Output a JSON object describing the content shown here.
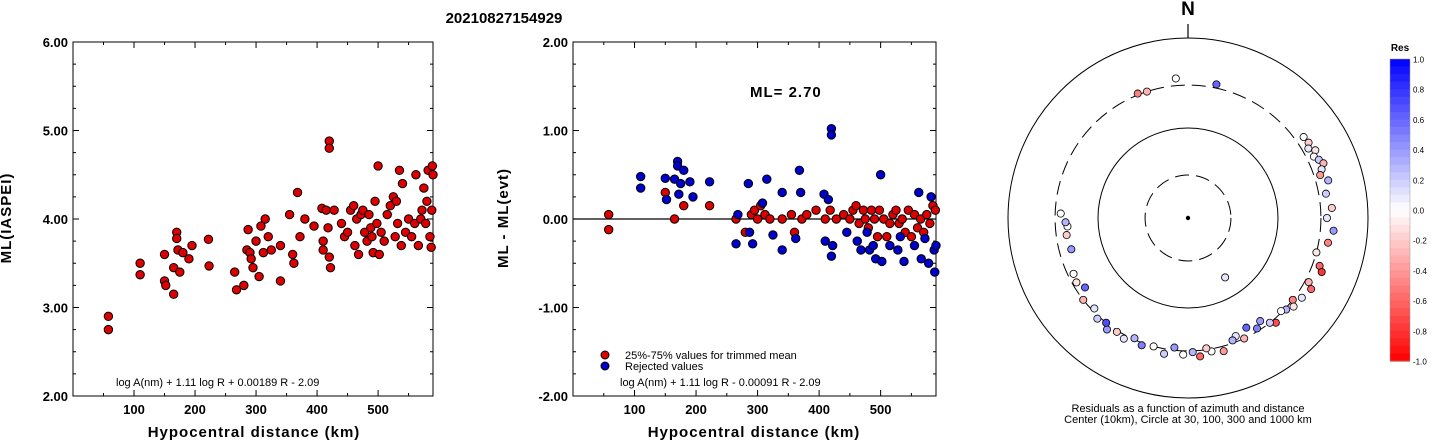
{
  "page_title": "20210827154929",
  "chart_data": [
    {
      "type": "scatter",
      "xlabel": "Hypocentral distance (km)",
      "ylabel": "ML(IASPEI)",
      "xlim": [
        0,
        590
      ],
      "ylim": [
        2.0,
        6.0
      ],
      "xticks": [
        "100",
        "200",
        "300",
        "400",
        "500"
      ],
      "xtick_values": [
        100,
        200,
        300,
        400,
        500
      ],
      "yticks": [
        "2.00",
        "3.00",
        "4.00",
        "5.00",
        "6.00"
      ],
      "ytick_values": [
        2.0,
        3.0,
        4.0,
        5.0,
        6.0
      ],
      "formula": "log A(nm) + 1.11 log R + 0.00189 R - 2.09",
      "marker_color": "#dd0000",
      "points": [
        [
          58,
          2.9
        ],
        [
          58,
          2.75
        ],
        [
          110,
          3.5
        ],
        [
          110,
          3.37
        ],
        [
          150,
          3.6
        ],
        [
          150,
          3.3
        ],
        [
          152,
          3.25
        ],
        [
          165,
          3.45
        ],
        [
          165,
          3.15
        ],
        [
          170,
          3.85
        ],
        [
          170,
          3.78
        ],
        [
          172,
          3.65
        ],
        [
          175,
          3.4
        ],
        [
          180,
          3.62
        ],
        [
          190,
          3.55
        ],
        [
          195,
          3.7
        ],
        [
          222,
          3.77
        ],
        [
          223,
          3.47
        ],
        [
          265,
          3.4
        ],
        [
          268,
          3.2
        ],
        [
          280,
          3.25
        ],
        [
          285,
          3.65
        ],
        [
          287,
          3.88
        ],
        [
          290,
          3.62
        ],
        [
          292,
          3.55
        ],
        [
          295,
          3.45
        ],
        [
          300,
          3.75
        ],
        [
          305,
          3.35
        ],
        [
          308,
          3.92
        ],
        [
          312,
          3.62
        ],
        [
          315,
          4.0
        ],
        [
          320,
          3.8
        ],
        [
          325,
          3.65
        ],
        [
          340,
          3.7
        ],
        [
          340,
          3.3
        ],
        [
          355,
          4.05
        ],
        [
          360,
          3.6
        ],
        [
          362,
          3.5
        ],
        [
          368,
          4.3
        ],
        [
          372,
          3.8
        ],
        [
          380,
          4.0
        ],
        [
          395,
          3.92
        ],
        [
          408,
          4.12
        ],
        [
          410,
          3.75
        ],
        [
          410,
          3.65
        ],
        [
          415,
          4.1
        ],
        [
          418,
          3.9
        ],
        [
          420,
          4.88
        ],
        [
          420,
          4.8
        ],
        [
          420,
          3.57
        ],
        [
          422,
          3.45
        ],
        [
          428,
          4.1
        ],
        [
          440,
          3.95
        ],
        [
          445,
          3.8
        ],
        [
          450,
          3.85
        ],
        [
          455,
          4.1
        ],
        [
          460,
          4.15
        ],
        [
          462,
          3.7
        ],
        [
          465,
          4.0
        ],
        [
          468,
          3.6
        ],
        [
          472,
          4.05
        ],
        [
          475,
          4.1
        ],
        [
          478,
          3.85
        ],
        [
          482,
          3.75
        ],
        [
          485,
          4.05
        ],
        [
          488,
          3.9
        ],
        [
          490,
          3.8
        ],
        [
          492,
          3.62
        ],
        [
          495,
          4.2
        ],
        [
          498,
          3.95
        ],
        [
          500,
          4.6
        ],
        [
          502,
          3.6
        ],
        [
          505,
          3.85
        ],
        [
          510,
          3.75
        ],
        [
          515,
          4.05
        ],
        [
          520,
          4.15
        ],
        [
          525,
          4.25
        ],
        [
          528,
          3.8
        ],
        [
          530,
          4.2
        ],
        [
          532,
          3.95
        ],
        [
          535,
          4.55
        ],
        [
          538,
          3.7
        ],
        [
          540,
          4.4
        ],
        [
          545,
          3.85
        ],
        [
          550,
          4.0
        ],
        [
          555,
          3.8
        ],
        [
          560,
          3.95
        ],
        [
          562,
          4.5
        ],
        [
          566,
          3.7
        ],
        [
          570,
          4.0
        ],
        [
          572,
          4.1
        ],
        [
          575,
          4.35
        ],
        [
          578,
          3.95
        ],
        [
          580,
          4.2
        ],
        [
          582,
          4.55
        ],
        [
          585,
          3.8
        ],
        [
          587,
          3.68
        ],
        [
          588,
          4.1
        ],
        [
          589,
          4.6
        ],
        [
          590,
          4.5
        ]
      ]
    },
    {
      "type": "scatter",
      "xlabel": "Hypocentral distance (km)",
      "ylabel": "ML - ML(evt)",
      "xlim": [
        0,
        590
      ],
      "ylim": [
        -2.0,
        2.0
      ],
      "xticks": [
        "100",
        "200",
        "300",
        "400",
        "500"
      ],
      "xtick_values": [
        100,
        200,
        300,
        400,
        500
      ],
      "yticks": [
        "-2.00",
        "-1.00",
        "0.00",
        "1.00",
        "2.00"
      ],
      "ytick_values": [
        -2.0,
        -1.0,
        0.0,
        1.0,
        2.0
      ],
      "annotation": "ML= 2.70",
      "formula": "log A(nm) + 1.11 log R - 0.00091 R - 2.09",
      "legend": [
        {
          "label": "25%-75% values for trimmed mean",
          "color": "#dd0000"
        },
        {
          "label": "Rejected values",
          "color": "#0000cc"
        }
      ],
      "legend_position": "bottom-left",
      "series": [
        {
          "name": "25%-75% values for trimmed mean",
          "color": "#dd0000",
          "points": [
            [
              58,
              0.05
            ],
            [
              58,
              -0.12
            ],
            [
              150,
              0.3
            ],
            [
              165,
              0.0
            ],
            [
              180,
              0.15
            ],
            [
              222,
              0.15
            ],
            [
              265,
              0.0
            ],
            [
              280,
              -0.15
            ],
            [
              290,
              0.05
            ],
            [
              295,
              0.1
            ],
            [
              300,
              0.0
            ],
            [
              305,
              0.15
            ],
            [
              312,
              0.05
            ],
            [
              320,
              0.0
            ],
            [
              340,
              0.0
            ],
            [
              355,
              0.05
            ],
            [
              360,
              -0.15
            ],
            [
              372,
              0.0
            ],
            [
              380,
              0.05
            ],
            [
              395,
              0.1
            ],
            [
              410,
              0.0
            ],
            [
              418,
              0.1
            ],
            [
              428,
              0.0
            ],
            [
              440,
              0.05
            ],
            [
              450,
              0.0
            ],
            [
              455,
              0.1
            ],
            [
              460,
              0.15
            ],
            [
              465,
              -0.05
            ],
            [
              472,
              0.1
            ],
            [
              475,
              0.0
            ],
            [
              480,
              -0.1
            ],
            [
              485,
              0.1
            ],
            [
              490,
              0.0
            ],
            [
              495,
              -0.2
            ],
            [
              498,
              0.1
            ],
            [
              505,
              0.0
            ],
            [
              510,
              -0.2
            ],
            [
              515,
              -0.05
            ],
            [
              520,
              0.05
            ],
            [
              525,
              0.1
            ],
            [
              530,
              -0.05
            ],
            [
              535,
              0.0
            ],
            [
              540,
              -0.15
            ],
            [
              545,
              0.1
            ],
            [
              550,
              -0.2
            ],
            [
              555,
              0.05
            ],
            [
              560,
              -0.1
            ],
            [
              565,
              0.0
            ],
            [
              570,
              -0.15
            ],
            [
              575,
              0.05
            ],
            [
              580,
              -0.05
            ],
            [
              585,
              0.15
            ],
            [
              589,
              0.1
            ]
          ]
        },
        {
          "name": "Rejected values",
          "color": "#0000cc",
          "points": [
            [
              110,
              0.48
            ],
            [
              110,
              0.35
            ],
            [
              150,
              0.46
            ],
            [
              152,
              0.22
            ],
            [
              165,
              0.45
            ],
            [
              170,
              0.65
            ],
            [
              170,
              0.6
            ],
            [
              172,
              0.28
            ],
            [
              175,
              0.4
            ],
            [
              180,
              0.55
            ],
            [
              190,
              0.42
            ],
            [
              195,
              0.25
            ],
            [
              222,
              0.42
            ],
            [
              265,
              -0.28
            ],
            [
              268,
              0.05
            ],
            [
              285,
              0.4
            ],
            [
              287,
              -0.15
            ],
            [
              292,
              -0.28
            ],
            [
              308,
              0.18
            ],
            [
              315,
              0.45
            ],
            [
              325,
              -0.18
            ],
            [
              340,
              -0.35
            ],
            [
              340,
              0.3
            ],
            [
              362,
              -0.22
            ],
            [
              368,
              0.55
            ],
            [
              370,
              0.3
            ],
            [
              408,
              0.28
            ],
            [
              410,
              -0.25
            ],
            [
              415,
              0.22
            ],
            [
              420,
              1.02
            ],
            [
              420,
              0.95
            ],
            [
              420,
              -0.42
            ],
            [
              422,
              -0.3
            ],
            [
              445,
              -0.15
            ],
            [
              462,
              -0.25
            ],
            [
              468,
              -0.35
            ],
            [
              478,
              -0.15
            ],
            [
              482,
              -0.35
            ],
            [
              488,
              -0.3
            ],
            [
              492,
              -0.45
            ],
            [
              500,
              0.5
            ],
            [
              502,
              -0.48
            ],
            [
              515,
              -0.3
            ],
            [
              528,
              -0.35
            ],
            [
              532,
              -0.2
            ],
            [
              538,
              -0.48
            ],
            [
              555,
              -0.3
            ],
            [
              562,
              0.3
            ],
            [
              566,
              -0.45
            ],
            [
              572,
              -0.22
            ],
            [
              578,
              -0.5
            ],
            [
              582,
              0.25
            ],
            [
              587,
              -0.35
            ],
            [
              588,
              -0.6
            ],
            [
              590,
              -0.3
            ]
          ]
        }
      ]
    },
    {
      "type": "scatter",
      "title": "N",
      "caption_line1": "Residuals as a function of azimuth and distance",
      "caption_line2": "Center (10km), Circle at 30, 100, 300 and 1000 km",
      "colorbar_title": "Res",
      "colorbar_ticks": [
        "1.0",
        "0.8",
        "0.6",
        "0.4",
        "0.2",
        "0.0",
        "-0.2",
        "-0.4",
        "-0.6",
        "-0.8",
        "-1.0"
      ],
      "colorbar_tick_values": [
        1.0,
        0.8,
        0.6,
        0.4,
        0.2,
        0.0,
        -0.2,
        -0.4,
        -0.6,
        -0.8,
        -1.0
      ],
      "colorbar_range": [
        -1.0,
        1.0
      ],
      "circle_distances_km": [
        30,
        100,
        300,
        1000
      ],
      "circle_styles": [
        "dashed",
        "solid",
        "dashed",
        "solid"
      ],
      "radial_scale": "log",
      "points_az_dist_res": [
        [
          -22,
          310,
          -0.5
        ],
        [
          -18,
          300,
          -0.3
        ],
        [
          12,
          330,
          0.6
        ],
        [
          -5,
          360,
          0.0
        ],
        [
          55,
          370,
          0.0
        ],
        [
          58,
          380,
          -0.2
        ],
        [
          60,
          350,
          0.1
        ],
        [
          62,
          400,
          -0.1
        ],
        [
          64,
          360,
          0.0
        ],
        [
          66,
          390,
          0.2
        ],
        [
          68,
          420,
          -0.3
        ],
        [
          70,
          380,
          0.1
        ],
        [
          72,
          350,
          -0.4
        ],
        [
          75,
          410,
          0.3
        ],
        [
          80,
          360,
          0.2
        ],
        [
          86,
          400,
          -0.2
        ],
        [
          90,
          350,
          0.1
        ],
        [
          95,
          420,
          0.4
        ],
        [
          100,
          380,
          -0.5
        ],
        [
          105,
          300,
          -0.1
        ],
        [
          110,
          360,
          -0.6
        ],
        [
          112,
          400,
          -0.8
        ],
        [
          118,
          330,
          -0.3
        ],
        [
          120,
          380,
          -0.6
        ],
        [
          125,
          350,
          0.1
        ],
        [
          128,
          300,
          -0.5
        ],
        [
          130,
          340,
          -0.1
        ],
        [
          133,
          310,
          0.3
        ],
        [
          135,
          290,
          0.0
        ],
        [
          140,
          330,
          -0.7
        ],
        [
          142,
          300,
          0.2
        ],
        [
          145,
          250,
          0.4
        ],
        [
          148,
          280,
          0.5
        ],
        [
          152,
          240,
          0.6
        ],
        [
          155,
          300,
          -0.3
        ],
        [
          158,
          260,
          0.1
        ],
        [
          160,
          280,
          0.3
        ],
        [
          165,
          340,
          -0.4
        ],
        [
          170,
          320,
          0.0
        ],
        [
          172,
          290,
          -0.2
        ],
        [
          175,
          350,
          -0.6
        ],
        [
          178,
          310,
          0.3
        ],
        [
          182,
          330,
          0.0
        ],
        [
          186,
          280,
          0.4
        ],
        [
          190,
          340,
          0.2
        ],
        [
          195,
          300,
          0.0
        ],
        [
          200,
          320,
          0.5
        ],
        [
          204,
          290,
          0.3
        ],
        [
          208,
          330,
          0.1
        ],
        [
          212,
          310,
          -0.2
        ],
        [
          216,
          340,
          0.4
        ],
        [
          218,
          300,
          0.7
        ],
        [
          222,
          320,
          0.2
        ],
        [
          226,
          280,
          0.1
        ],
        [
          232,
          300,
          -0.3
        ],
        [
          236,
          240,
          0.6
        ],
        [
          240,
          270,
          -0.1
        ],
        [
          244,
          260,
          0.0
        ],
        [
          255,
          220,
          0.4
        ],
        [
          262,
          230,
          -0.2
        ],
        [
          266,
          220,
          0.0
        ],
        [
          268,
          230,
          0.3
        ],
        [
          272,
          260,
          0.0
        ],
        [
          148,
          60,
          0.1
        ]
      ]
    }
  ]
}
